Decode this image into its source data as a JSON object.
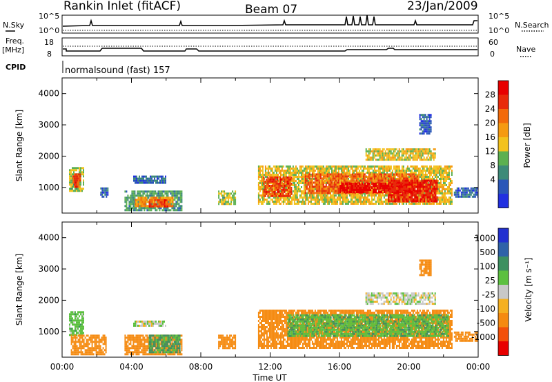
{
  "header": {
    "station": "Rankin Inlet (fitACF)",
    "beam": "Beam 07",
    "date": "23/Jan/2009"
  },
  "strips": {
    "nsky_label": "N.Sky",
    "nsky_ticks": [
      "10^5",
      "10^0"
    ],
    "nsearch_label": "N.Search",
    "nsearch_ticks": [
      "10^5",
      "10^0"
    ],
    "freq_label_1": "Freq.",
    "freq_label_2": "[MHz]",
    "freq_ticks": [
      "18",
      "8"
    ],
    "nave_label": "Nave",
    "nave_ticks": [
      "60",
      "0"
    ],
    "cpid_label": "CPID",
    "cpid_text": "normalsound (fast) 157"
  },
  "colors": {
    "power_scale": [
      "#2230e0",
      "#2a56b8",
      "#3d8a78",
      "#5cb050",
      "#f2c21c",
      "#f59a10",
      "#f26a0a",
      "#e82a0a",
      "#e80000"
    ],
    "velocity_scale": [
      "#e80000",
      "#f2500a",
      "#f58a10",
      "#f5b020",
      "#c8c8c8",
      "#5cc040",
      "#3d9060",
      "#2f62a8",
      "#2230d0"
    ],
    "panel_border": "#000000"
  },
  "chart_data": [
    {
      "type": "heatmap",
      "name": "power",
      "ylabel": "Slant Range [km]",
      "xlabel": "",
      "xlim": [
        0,
        24
      ],
      "ylim": [
        180,
        4500
      ],
      "x_ticks": [],
      "y_ticks": [
        1000,
        2000,
        3000,
        4000
      ],
      "colorbar": {
        "label": "Power [dB]",
        "range": [
          0,
          32
        ],
        "ticks": [
          4,
          8,
          12,
          16,
          20,
          24,
          28
        ]
      },
      "patches": [
        {
          "x0": 0.4,
          "x1": 1.2,
          "y0": 900,
          "y1": 1650,
          "value": 14
        },
        {
          "x0": 0.6,
          "x1": 1.0,
          "y0": 1050,
          "y1": 1450,
          "value": 25
        },
        {
          "x0": 2.2,
          "x1": 2.6,
          "y0": 700,
          "y1": 1000,
          "value": 6
        },
        {
          "x0": 3.6,
          "x1": 6.9,
          "y0": 300,
          "y1": 900,
          "value": 10
        },
        {
          "x0": 4.2,
          "x1": 6.4,
          "y0": 400,
          "y1": 700,
          "value": 20
        },
        {
          "x0": 5.0,
          "x1": 6.1,
          "y0": 420,
          "y1": 620,
          "value": 26
        },
        {
          "x0": 4.1,
          "x1": 6.0,
          "y0": 1150,
          "y1": 1380,
          "value": 6
        },
        {
          "x0": 9.0,
          "x1": 10.0,
          "y0": 450,
          "y1": 900,
          "value": 14
        },
        {
          "x0": 11.3,
          "x1": 22.5,
          "y0": 500,
          "y1": 1700,
          "value": 16
        },
        {
          "x0": 11.6,
          "x1": 13.2,
          "y0": 700,
          "y1": 1350,
          "value": 26
        },
        {
          "x0": 14.0,
          "x1": 20.5,
          "y0": 800,
          "y1": 1450,
          "value": 24
        },
        {
          "x0": 16.0,
          "x1": 20.3,
          "y0": 820,
          "y1": 1150,
          "value": 30
        },
        {
          "x0": 18.8,
          "x1": 21.6,
          "y0": 550,
          "y1": 1250,
          "value": 28
        },
        {
          "x0": 17.5,
          "x1": 21.5,
          "y0": 1900,
          "y1": 2250,
          "value": 16
        },
        {
          "x0": 20.6,
          "x1": 21.3,
          "y0": 2700,
          "y1": 3350,
          "value": 6
        },
        {
          "x0": 22.6,
          "x1": 24.0,
          "y0": 700,
          "y1": 1000,
          "value": 6
        }
      ]
    },
    {
      "type": "heatmap",
      "name": "velocity",
      "ylabel": "Slant Range [km]",
      "xlabel": "Time UT",
      "xlim": [
        0,
        24
      ],
      "ylim": [
        180,
        4500
      ],
      "x_ticks": [
        "00:00",
        "04:00",
        "08:00",
        "12:00",
        "16:00",
        "20:00",
        "00:00"
      ],
      "y_ticks": [
        1000,
        2000,
        3000,
        4000
      ],
      "colorbar": {
        "label": "Velocity [m s⁻¹]",
        "ticks": [
          "1000",
          "500",
          "100",
          "25",
          "-25",
          "-100",
          "-500",
          "-1000"
        ]
      },
      "patches": [
        {
          "x0": 0.4,
          "x1": 1.2,
          "y0": 900,
          "y1": 1650,
          "value": 60
        },
        {
          "x0": 0.5,
          "x1": 2.5,
          "y0": 300,
          "y1": 900,
          "value": -150
        },
        {
          "x0": 3.6,
          "x1": 6.9,
          "y0": 300,
          "y1": 900,
          "value": -150
        },
        {
          "x0": 5.0,
          "x1": 6.8,
          "y0": 350,
          "y1": 900,
          "value": 120
        },
        {
          "x0": 4.1,
          "x1": 6.0,
          "y0": 1200,
          "y1": 1350,
          "value": 0
        },
        {
          "x0": 9.0,
          "x1": 10.0,
          "y0": 450,
          "y1": 900,
          "value": -150
        },
        {
          "x0": 11.3,
          "x1": 22.5,
          "y0": 500,
          "y1": 1700,
          "value": -150
        },
        {
          "x0": 13.0,
          "x1": 22.3,
          "y0": 850,
          "y1": 1550,
          "value": 80
        },
        {
          "x0": 17.5,
          "x1": 21.5,
          "y0": 1900,
          "y1": 2250,
          "value": 0
        },
        {
          "x0": 20.6,
          "x1": 21.3,
          "y0": 2800,
          "y1": 3300,
          "value": -150
        },
        {
          "x0": 22.6,
          "x1": 24.0,
          "y0": 700,
          "y1": 1000,
          "value": -150
        }
      ]
    }
  ]
}
